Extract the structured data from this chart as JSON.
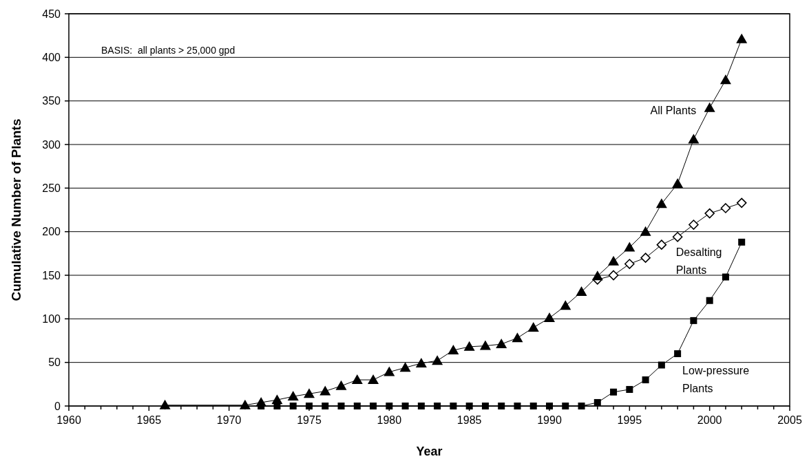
{
  "chart_data": {
    "type": "line",
    "xlabel": "Year",
    "ylabel": "Cumulative Number of Plants",
    "annotations": [
      "BASIS:  all plants > 25,000 gpd"
    ],
    "series": [
      {
        "name": "All Plants",
        "color": "#000000",
        "marker": "triangle",
        "x": [
          1966,
          1971,
          1972,
          1973,
          1974,
          1975,
          1976,
          1977,
          1978,
          1979,
          1980,
          1981,
          1982,
          1983,
          1984,
          1985,
          1986,
          1987,
          1988,
          1989,
          1990,
          1991,
          1992,
          1993,
          1994,
          1995,
          1996,
          1997,
          1998,
          1999,
          2000,
          2001,
          2002
        ],
        "values": [
          1,
          1,
          4,
          7,
          11,
          14,
          17,
          23,
          30,
          30,
          39,
          44,
          49,
          52,
          64,
          68,
          69,
          71,
          78,
          90,
          101,
          115,
          131,
          149,
          166,
          182,
          200,
          232,
          255,
          306,
          342,
          374,
          421
        ]
      },
      {
        "name": "Desalting Plants",
        "color": "#000000",
        "marker": "diamond",
        "x": [
          1993,
          1994,
          1995,
          1996,
          1997,
          1998,
          1999,
          2000,
          2001,
          2002
        ],
        "values": [
          145,
          150,
          163,
          170,
          185,
          194,
          208,
          221,
          227,
          233
        ]
      },
      {
        "name": "Low-pressure Plants",
        "color": "#000000",
        "marker": "square",
        "x": [
          1972,
          1973,
          1974,
          1975,
          1976,
          1977,
          1978,
          1979,
          1980,
          1981,
          1982,
          1983,
          1984,
          1985,
          1986,
          1987,
          1988,
          1989,
          1990,
          1991,
          1992,
          1993,
          1994,
          1995,
          1996,
          1997,
          1998,
          1999,
          2000,
          2001,
          2002
        ],
        "values": [
          0,
          0,
          0,
          0,
          0,
          0,
          0,
          0,
          0,
          0,
          0,
          0,
          0,
          0,
          0,
          0,
          0,
          0,
          0,
          0,
          0,
          4,
          16,
          19,
          30,
          47,
          60,
          98,
          121,
          148,
          188
        ]
      }
    ],
    "xlim": [
      1960,
      2005
    ],
    "xticks": [
      1960,
      {
        "value": 1961,
        "label": null
      },
      {
        "value": 1962,
        "label": null
      },
      {
        "value": 1963,
        "label": null
      },
      {
        "value": 1964,
        "label": null
      },
      1965,
      {
        "value": 1966,
        "label": null
      },
      {
        "value": 1967,
        "label": null
      },
      {
        "value": 1968,
        "label": null
      },
      {
        "value": 1969,
        "label": null
      },
      1970,
      {
        "value": 1971,
        "label": null
      },
      {
        "value": 1972,
        "label": null
      },
      {
        "value": 1973,
        "label": null
      },
      {
        "value": 1974,
        "label": null
      },
      1975,
      {
        "value": 1976,
        "label": null
      },
      {
        "value": 1977,
        "label": null
      },
      {
        "value": 1978,
        "label": null
      },
      {
        "value": 1979,
        "label": null
      },
      1980,
      {
        "value": 1981,
        "label": null
      },
      {
        "value": 1982,
        "label": null
      },
      {
        "value": 1983,
        "label": null
      },
      {
        "value": 1984,
        "label": null
      },
      1985,
      {
        "value": 1986,
        "label": null
      },
      {
        "value": 1987,
        "label": null
      },
      {
        "value": 1988,
        "label": null
      },
      {
        "value": 1989,
        "label": null
      },
      1990,
      {
        "value": 1991,
        "label": null
      },
      {
        "value": 1992,
        "label": null
      },
      {
        "value": 1993,
        "label": null
      },
      {
        "value": 1994,
        "label": null
      },
      1995,
      {
        "value": 1996,
        "label": null
      },
      {
        "value": 1997,
        "label": null
      },
      {
        "value": 1998,
        "label": null
      },
      {
        "value": 1999,
        "label": null
      },
      2000,
      {
        "value": 2001,
        "label": null
      },
      {
        "value": 2002,
        "label": null
      },
      {
        "value": 2003,
        "label": null
      },
      {
        "value": 2004,
        "label": null
      },
      2005
    ],
    "ylim": [
      0,
      450
    ],
    "yticks": [
      0,
      50,
      100,
      150,
      200,
      250,
      300,
      350,
      400,
      450
    ],
    "grid": "y",
    "line_style": "solid",
    "legend": false
  }
}
